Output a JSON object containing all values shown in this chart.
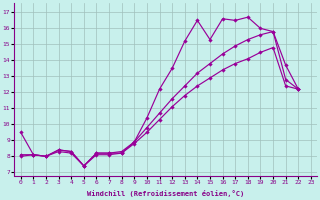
{
  "xlabel": "Windchill (Refroidissement éolien,°C)",
  "bg_color": "#c8f0ec",
  "grid_color": "#a0c0bc",
  "line_color": "#990099",
  "x_ticks": [
    0,
    1,
    2,
    3,
    4,
    5,
    6,
    7,
    8,
    9,
    10,
    11,
    12,
    13,
    14,
    15,
    16,
    17,
    18,
    19,
    20,
    21,
    22,
    23
  ],
  "y_ticks": [
    7,
    8,
    9,
    10,
    11,
    12,
    13,
    14,
    15,
    16,
    17
  ],
  "ylim": [
    6.8,
    17.6
  ],
  "xlim": [
    -0.5,
    23.5
  ],
  "curve1_x": [
    0,
    1,
    2,
    3,
    4,
    5,
    6,
    7,
    8,
    9,
    10,
    11,
    12,
    13,
    14,
    15,
    16,
    17,
    18,
    19,
    20,
    21,
    22
  ],
  "curve1_y": [
    9.5,
    8.1,
    8.0,
    8.4,
    8.3,
    7.4,
    8.2,
    8.2,
    8.2,
    8.9,
    10.4,
    12.2,
    13.5,
    15.2,
    16.5,
    15.3,
    16.6,
    16.5,
    16.7,
    16.0,
    15.8,
    13.7,
    12.2
  ],
  "curve2_x": [
    0,
    1,
    2,
    3,
    4,
    5,
    6,
    7,
    8,
    9,
    10,
    11,
    12,
    13,
    14,
    15,
    16,
    17,
    18,
    19,
    20,
    21,
    22
  ],
  "curve2_y": [
    8.1,
    8.1,
    8.0,
    8.4,
    8.3,
    7.4,
    8.2,
    8.2,
    8.3,
    8.9,
    9.8,
    10.7,
    11.6,
    12.4,
    13.2,
    13.8,
    14.4,
    14.9,
    15.3,
    15.6,
    15.8,
    12.8,
    12.2
  ],
  "curve3_x": [
    0,
    1,
    2,
    3,
    4,
    5,
    6,
    7,
    8,
    9,
    10,
    11,
    12,
    13,
    14,
    15,
    16,
    17,
    18,
    19,
    20,
    21,
    22
  ],
  "curve3_y": [
    8.0,
    8.1,
    8.0,
    8.3,
    8.2,
    7.4,
    8.1,
    8.1,
    8.2,
    8.8,
    9.5,
    10.3,
    11.1,
    11.8,
    12.4,
    12.9,
    13.4,
    13.8,
    14.1,
    14.5,
    14.8,
    12.4,
    12.2
  ]
}
